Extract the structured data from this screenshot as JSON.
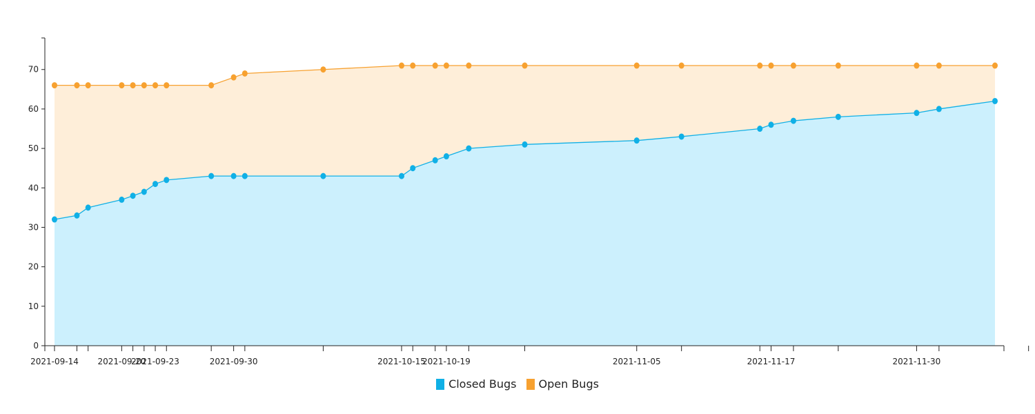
{
  "chart_data": {
    "type": "area",
    "stacked": false,
    "title": "",
    "xlabel": "",
    "ylabel": "",
    "ylim": [
      0,
      78
    ],
    "y_ticks": [
      0,
      10,
      20,
      30,
      40,
      50,
      60,
      70
    ],
    "x_range": [
      "2021-09-13",
      "2021-12-11"
    ],
    "x_tick_dates": [
      "2021-09-14",
      "2021-09-16",
      "2021-09-17",
      "2021-09-20",
      "2021-09-21",
      "2021-09-22",
      "2021-09-23",
      "2021-09-24",
      "2021-09-28",
      "2021-09-30",
      "2021-10-01",
      "2021-10-08",
      "2021-10-15",
      "2021-10-16",
      "2021-10-18",
      "2021-10-19",
      "2021-10-21",
      "2021-10-26",
      "2021-11-05",
      "2021-11-09",
      "2021-11-16",
      "2021-11-17",
      "2021-11-19",
      "2021-11-23",
      "2021-11-30",
      "2021-12-02",
      "2021-12-10"
    ],
    "x_tick_labels": [
      {
        "date": "2021-09-14",
        "label": "2021-09-14"
      },
      {
        "date": "2021-09-20",
        "label": "2021-09-20"
      },
      {
        "date": "2021-09-23",
        "label": "2021-09-23"
      },
      {
        "date": "2021-09-30",
        "label": "2021-09-30"
      },
      {
        "date": "2021-10-15",
        "label": "2021-10-15"
      },
      {
        "date": "2021-10-19",
        "label": "2021-10-19"
      },
      {
        "date": "2021-11-05",
        "label": "2021-11-05"
      },
      {
        "date": "2021-11-17",
        "label": "2021-11-17"
      },
      {
        "date": "2021-11-30",
        "label": "2021-11-30"
      }
    ],
    "legend_position": "bottom-center",
    "series": [
      {
        "name": "Open Bugs",
        "color": "#f7a130",
        "fill": "#feeed9",
        "points": [
          {
            "x": "2021-09-14",
            "y": 66
          },
          {
            "x": "2021-09-16",
            "y": 66
          },
          {
            "x": "2021-09-17",
            "y": 66
          },
          {
            "x": "2021-09-20",
            "y": 66
          },
          {
            "x": "2021-09-21",
            "y": 66
          },
          {
            "x": "2021-09-22",
            "y": 66
          },
          {
            "x": "2021-09-23",
            "y": 66
          },
          {
            "x": "2021-09-24",
            "y": 66
          },
          {
            "x": "2021-09-28",
            "y": 66
          },
          {
            "x": "2021-09-30",
            "y": 68
          },
          {
            "x": "2021-10-01",
            "y": 69
          },
          {
            "x": "2021-10-08",
            "y": 70
          },
          {
            "x": "2021-10-15",
            "y": 71
          },
          {
            "x": "2021-10-16",
            "y": 71
          },
          {
            "x": "2021-10-18",
            "y": 71
          },
          {
            "x": "2021-10-19",
            "y": 71
          },
          {
            "x": "2021-10-21",
            "y": 71
          },
          {
            "x": "2021-10-26",
            "y": 71
          },
          {
            "x": "2021-11-05",
            "y": 71
          },
          {
            "x": "2021-11-09",
            "y": 71
          },
          {
            "x": "2021-11-16",
            "y": 71
          },
          {
            "x": "2021-11-17",
            "y": 71
          },
          {
            "x": "2021-11-19",
            "y": 71
          },
          {
            "x": "2021-11-23",
            "y": 71
          },
          {
            "x": "2021-11-30",
            "y": 71
          },
          {
            "x": "2021-12-02",
            "y": 71
          },
          {
            "x": "2021-12-07",
            "y": 71
          }
        ]
      },
      {
        "name": "Closed Bugs",
        "color": "#10b0e6",
        "fill": "#ccf0fd",
        "points": [
          {
            "x": "2021-09-14",
            "y": 32
          },
          {
            "x": "2021-09-16",
            "y": 33
          },
          {
            "x": "2021-09-17",
            "y": 35
          },
          {
            "x": "2021-09-20",
            "y": 37
          },
          {
            "x": "2021-09-21",
            "y": 38
          },
          {
            "x": "2021-09-22",
            "y": 39
          },
          {
            "x": "2021-09-23",
            "y": 41
          },
          {
            "x": "2021-09-24",
            "y": 42
          },
          {
            "x": "2021-09-28",
            "y": 43
          },
          {
            "x": "2021-09-30",
            "y": 43
          },
          {
            "x": "2021-10-01",
            "y": 43
          },
          {
            "x": "2021-10-08",
            "y": 43
          },
          {
            "x": "2021-10-15",
            "y": 43
          },
          {
            "x": "2021-10-16",
            "y": 45
          },
          {
            "x": "2021-10-18",
            "y": 47
          },
          {
            "x": "2021-10-19",
            "y": 48
          },
          {
            "x": "2021-10-21",
            "y": 50
          },
          {
            "x": "2021-10-26",
            "y": 51
          },
          {
            "x": "2021-11-05",
            "y": 52
          },
          {
            "x": "2021-11-09",
            "y": 53
          },
          {
            "x": "2021-11-16",
            "y": 55
          },
          {
            "x": "2021-11-17",
            "y": 56
          },
          {
            "x": "2021-11-19",
            "y": 57
          },
          {
            "x": "2021-11-23",
            "y": 58
          },
          {
            "x": "2021-11-30",
            "y": 59
          },
          {
            "x": "2021-12-02",
            "y": 60
          },
          {
            "x": "2021-12-07",
            "y": 62
          }
        ]
      }
    ],
    "legend": [
      {
        "label": "Closed Bugs",
        "color": "#10b0e6"
      },
      {
        "label": "Open Bugs",
        "color": "#f7a130"
      }
    ]
  }
}
